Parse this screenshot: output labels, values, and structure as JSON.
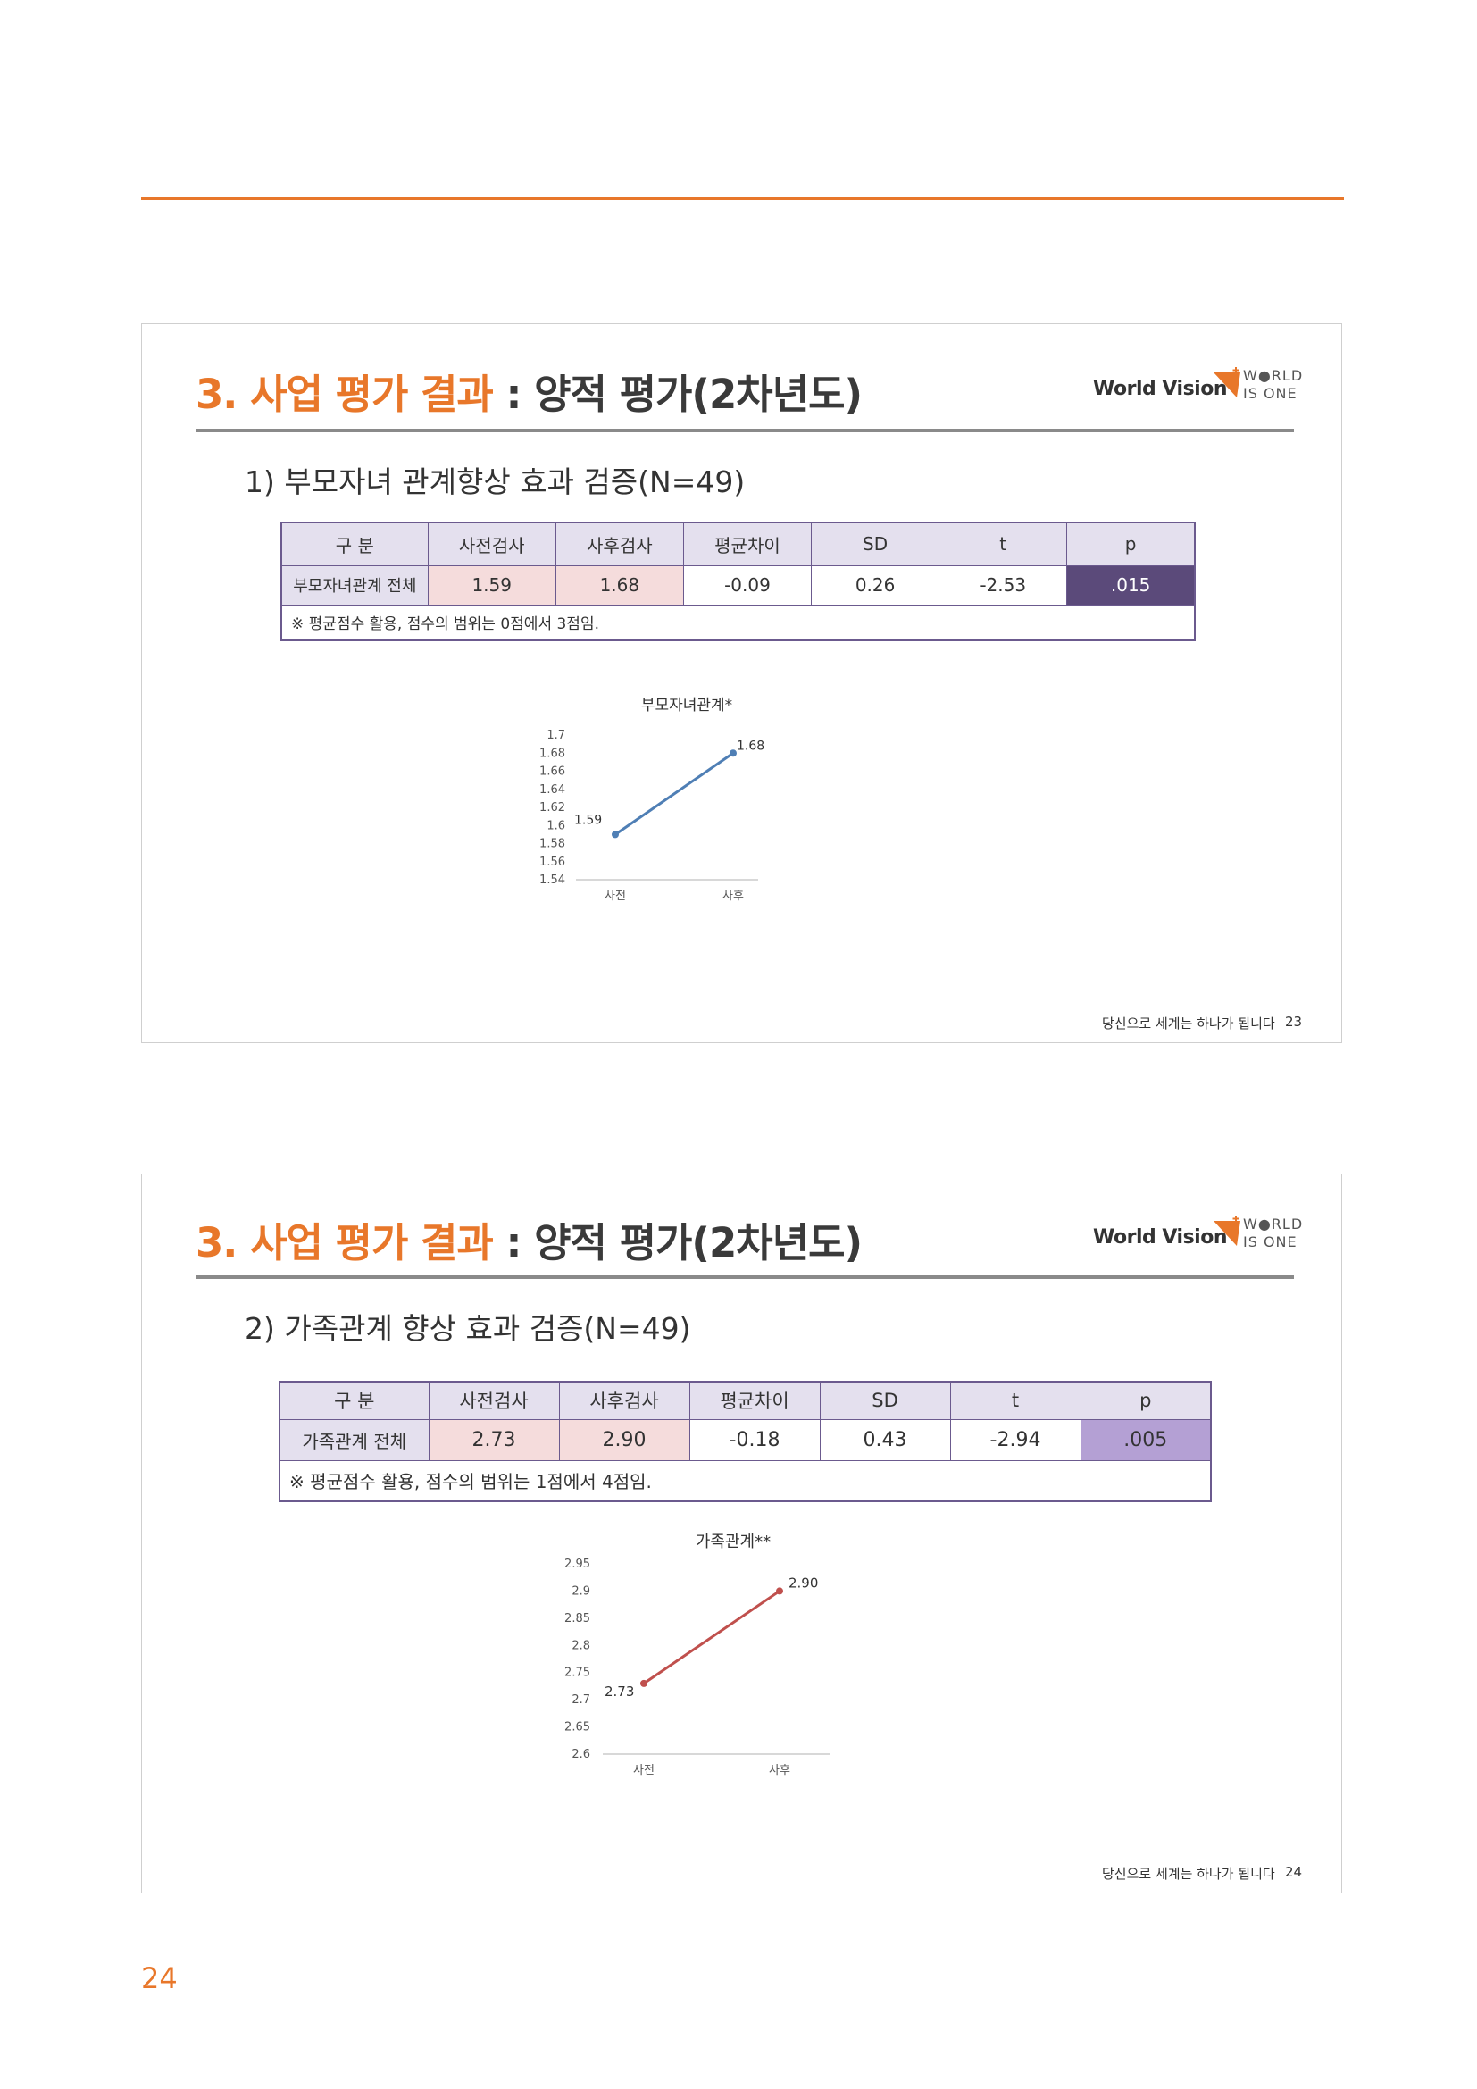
{
  "page_number": "24",
  "slides": [
    {
      "title_main": "3. 사업 평가 결과",
      "title_sep": " : ",
      "title_sub": "양적 평가(2차년도)",
      "logo": {
        "brand": "World Vision",
        "tag_line1": "W●RLD",
        "tag_line2": "IS ONE",
        "accent": "#e8772a"
      },
      "subtitle": "1) 부모자녀 관계향상 효과 검증(N=49)",
      "table": {
        "headers": [
          "구 분",
          "사전검사",
          "사후검사",
          "평균차이",
          "SD",
          "t",
          "p"
        ],
        "row": [
          "부모자녀관계 전체",
          "1.59",
          "1.68",
          "-0.09",
          "0.26",
          "-2.53",
          ".015"
        ],
        "note": "※ 평균점수 활용, 점수의 범위는 0점에서 3점임.",
        "p_color": "#5b4a7a",
        "p_text_color": "#ffffff"
      },
      "chart_data": {
        "type": "line",
        "title": "부모자녀관계*",
        "categories": [
          "사전",
          "사후"
        ],
        "series": [
          {
            "values": [
              1.59,
              1.68
            ],
            "color": "#4f7fb5"
          }
        ],
        "data_labels": [
          "1.59",
          "1.68"
        ],
        "ylim": [
          1.54,
          1.7
        ],
        "yticks": [
          "1.7",
          "1.68",
          "1.66",
          "1.64",
          "1.62",
          "1.6",
          "1.58",
          "1.56",
          "1.54"
        ],
        "grid": false
      },
      "footer": {
        "text": "당신으로 세계는 하나가 됩니다",
        "number": "23"
      }
    },
    {
      "title_main": "3. 사업 평가 결과",
      "title_sep": " : ",
      "title_sub": "양적 평가(2차년도)",
      "logo": {
        "brand": "World Vision",
        "tag_line1": "W●RLD",
        "tag_line2": "IS ONE",
        "accent": "#e8772a"
      },
      "subtitle": "2) 가족관계 향상 효과 검증(N=49)",
      "table": {
        "headers": [
          "구 분",
          "사전검사",
          "사후검사",
          "평균차이",
          "SD",
          "t",
          "p"
        ],
        "row": [
          "가족관계 전체",
          "2.73",
          "2.90",
          "-0.18",
          "0.43",
          "-2.94",
          ".005"
        ],
        "note": "※ 평균점수 활용, 점수의 범위는 1점에서 4점임.",
        "p_color": "#b4a0d4",
        "p_text_color": "#333333"
      },
      "chart_data": {
        "type": "line",
        "title": "가족관계**",
        "categories": [
          "사전",
          "사후"
        ],
        "series": [
          {
            "values": [
              2.73,
              2.9
            ],
            "color": "#c0504d"
          }
        ],
        "data_labels": [
          "2.73",
          "2.90"
        ],
        "ylim": [
          2.6,
          2.95
        ],
        "yticks": [
          "2.95",
          "2.9",
          "2.85",
          "2.8",
          "2.75",
          "2.7",
          "2.65",
          "2.6"
        ],
        "grid": false
      },
      "footer": {
        "text": "당신으로 세계는 하나가 됩니다",
        "number": "24"
      }
    }
  ]
}
